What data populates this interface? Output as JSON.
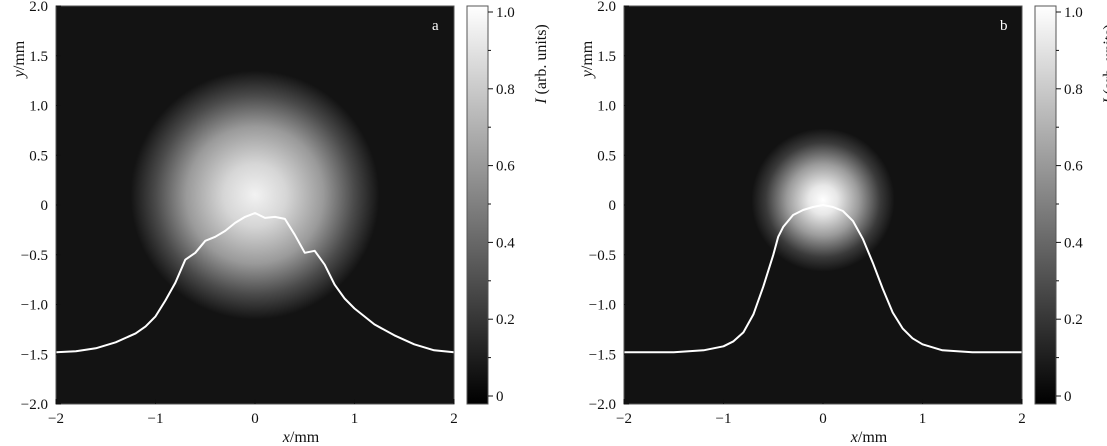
{
  "chart_data": [
    {
      "type": "heatmap",
      "panel_label": "a",
      "xlabel": "x/mm",
      "ylabel": "y/mm",
      "xlim": [
        -2,
        2
      ],
      "ylim": [
        -2,
        2
      ],
      "x_ticks": [
        "−2",
        "−1",
        "0",
        "1",
        "2"
      ],
      "y_ticks": [
        "2.0",
        "1.5",
        "1.0",
        "0.5",
        "0",
        "−0.5",
        "−1.0",
        "−1.5",
        "−2.0"
      ],
      "colorbar": {
        "label": "I (arb. units)",
        "range": [
          0,
          1
        ],
        "ticks": [
          "1.0",
          "0.8",
          "0.6",
          "0.4",
          "0.2",
          "0"
        ],
        "colormap": "grayscale"
      },
      "spot": {
        "center_x": 0.0,
        "center_y": 0.1,
        "radius_mm": 1.25
      },
      "profile_baseline_y": -1.5,
      "profile_peak_y": -0.08,
      "profile": {
        "x": [
          -2.0,
          -1.8,
          -1.6,
          -1.4,
          -1.2,
          -1.1,
          -1.0,
          -0.9,
          -0.8,
          -0.7,
          -0.6,
          -0.5,
          -0.4,
          -0.3,
          -0.2,
          -0.1,
          0.0,
          0.1,
          0.2,
          0.3,
          0.4,
          0.5,
          0.6,
          0.7,
          0.8,
          0.9,
          1.0,
          1.1,
          1.2,
          1.4,
          1.6,
          1.8,
          2.0
        ],
        "y": [
          -1.48,
          -1.47,
          -1.44,
          -1.38,
          -1.29,
          -1.22,
          -1.12,
          -0.96,
          -0.78,
          -0.55,
          -0.48,
          -0.36,
          -0.32,
          -0.26,
          -0.18,
          -0.12,
          -0.08,
          -0.13,
          -0.12,
          -0.14,
          -0.3,
          -0.48,
          -0.46,
          -0.6,
          -0.8,
          -0.94,
          -1.04,
          -1.12,
          -1.2,
          -1.31,
          -1.4,
          -1.46,
          -1.48
        ]
      }
    },
    {
      "type": "heatmap",
      "panel_label": "b",
      "xlabel": "x/mm",
      "ylabel": "y/mm",
      "xlim": [
        -2,
        2
      ],
      "ylim": [
        -2,
        2
      ],
      "x_ticks": [
        "−2",
        "−1",
        "0",
        "1",
        "2"
      ],
      "y_ticks": [
        "2.0",
        "1.5",
        "1.0",
        "0.5",
        "0",
        "−0.5",
        "−1.0",
        "−1.5",
        "−2.0"
      ],
      "colorbar": {
        "label": "I (arb. units)",
        "range": [
          0,
          1
        ],
        "ticks": [
          "1.0",
          "0.8",
          "0.6",
          "0.4",
          "0.2",
          "0"
        ],
        "colormap": "grayscale"
      },
      "spot": {
        "center_x": 0.0,
        "center_y": 0.05,
        "radius_mm": 0.72
      },
      "profile_baseline_y": -1.5,
      "profile_peak_y": 0.0,
      "profile": {
        "x": [
          -2.0,
          -1.5,
          -1.2,
          -1.0,
          -0.9,
          -0.8,
          -0.7,
          -0.6,
          -0.5,
          -0.45,
          -0.4,
          -0.3,
          -0.2,
          -0.1,
          0.0,
          0.1,
          0.2,
          0.3,
          0.4,
          0.5,
          0.6,
          0.7,
          0.8,
          0.9,
          1.0,
          1.2,
          1.5,
          2.0
        ],
        "y": [
          -1.48,
          -1.48,
          -1.46,
          -1.42,
          -1.37,
          -1.28,
          -1.1,
          -0.82,
          -0.5,
          -0.32,
          -0.22,
          -0.1,
          -0.05,
          -0.02,
          0.0,
          -0.02,
          -0.06,
          -0.16,
          -0.34,
          -0.58,
          -0.84,
          -1.08,
          -1.24,
          -1.34,
          -1.4,
          -1.46,
          -1.48,
          -1.48
        ]
      }
    }
  ]
}
